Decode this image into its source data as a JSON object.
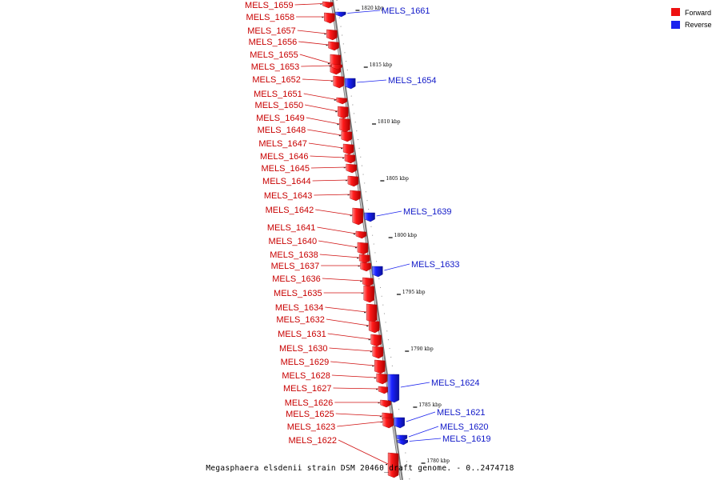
{
  "colors": {
    "forward": "#ee1111",
    "reverse": "#1a22ee",
    "backbone": "#9a9a9a"
  },
  "legend": {
    "forward_label": "Forward",
    "reverse_label": "Reverse"
  },
  "caption": "Megasphaera elsdenii strain DSM 20460_draft genome. - 0..2474718",
  "ticks": [
    "1820 kbp",
    "1815 kbp",
    "1810 kbp",
    "1805 kbp",
    "1800 kbp",
    "1795 kbp",
    "1790 kbp",
    "1785 kbp",
    "1780 kbp"
  ],
  "forward_genes": [
    "MELS_1659",
    "MELS_1658",
    "MELS_1657",
    "MELS_1656",
    "MELS_1655",
    "MELS_1653",
    "MELS_1652",
    "MELS_1651",
    "MELS_1650",
    "MELS_1649",
    "MELS_1648",
    "MELS_1647",
    "MELS_1646",
    "MELS_1645",
    "MELS_1644",
    "MELS_1643",
    "MELS_1642",
    "MELS_1641",
    "MELS_1640",
    "MELS_1638",
    "MELS_1637",
    "MELS_1636",
    "MELS_1635",
    "MELS_1634",
    "MELS_1632",
    "MELS_1631",
    "MELS_1630",
    "MELS_1629",
    "MELS_1628",
    "MELS_1627",
    "MELS_1626",
    "MELS_1625",
    "MELS_1623",
    "MELS_1622"
  ],
  "reverse_genes": [
    "MELS_1661",
    "MELS_1654",
    "MELS_1639",
    "MELS_1633",
    "MELS_1624",
    "MELS_1621",
    "MELS_1620",
    "MELS_1619"
  ]
}
